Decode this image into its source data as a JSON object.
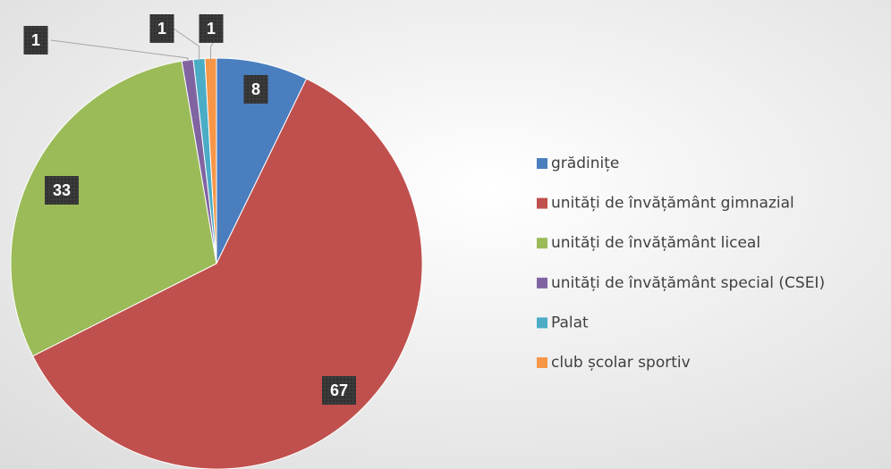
{
  "chart_data": {
    "type": "pie",
    "categories": [
      "grădinițe",
      "unități de învățământ gimnazial",
      "unități de învățământ liceal",
      "unități de învățământ special (CSEI)",
      "Palat",
      "club școlar sportiv"
    ],
    "values": [
      8,
      67,
      33,
      1,
      1,
      1
    ],
    "colors": [
      "#4a7ebf",
      "#c0504d",
      "#9bbb59",
      "#8064a2",
      "#4bacc6",
      "#f79646"
    ],
    "legend": "right"
  }
}
